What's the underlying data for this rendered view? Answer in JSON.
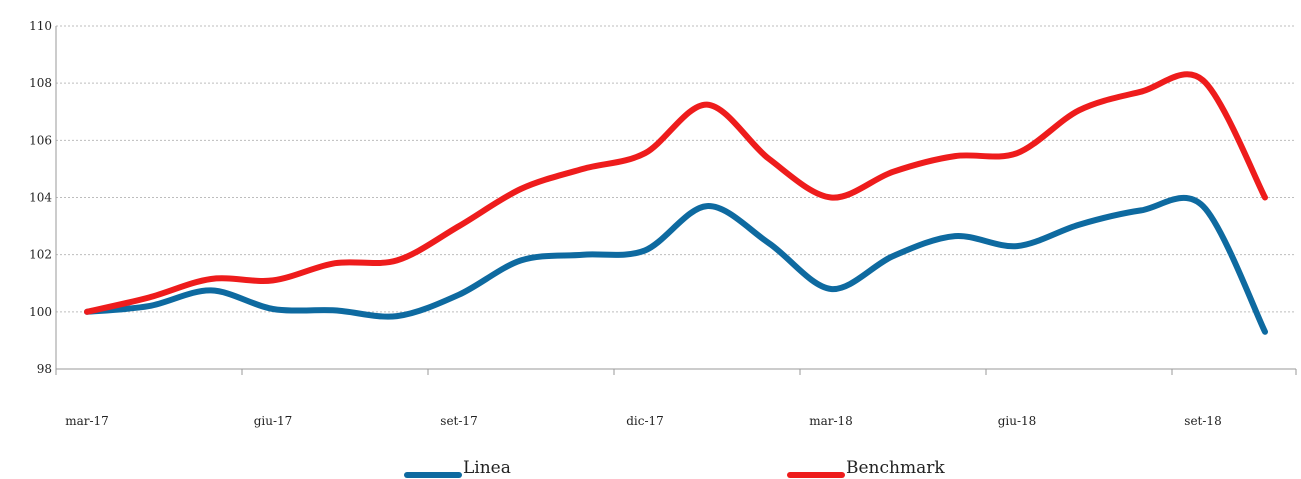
{
  "chart_data": {
    "type": "line",
    "title": "",
    "xlabel": "",
    "ylabel": "",
    "x_tick_labels": [
      "mar-17",
      "giu-17",
      "set-17",
      "dic-17",
      "mar-18",
      "giu-18",
      "set-18"
    ],
    "y_ticks": [
      98,
      100,
      102,
      104,
      106,
      108,
      110
    ],
    "ylim": [
      98,
      110
    ],
    "grid": "horizontal dashed",
    "legend": "bottom-center",
    "periods": [
      "mar-17",
      "apr-17",
      "mag-17",
      "giu-17",
      "lug-17",
      "ago-17",
      "set-17",
      "ott-17",
      "nov-17",
      "dic-17",
      "gen-18",
      "feb-18",
      "mar-18",
      "apr-18",
      "mag-18",
      "giu-18",
      "lug-18",
      "ago-18",
      "set-18",
      "ott-18"
    ],
    "series": [
      {
        "name": "Linea",
        "color": "#0e6aa0",
        "values": [
          100.0,
          100.2,
          100.75,
          100.1,
          100.05,
          99.85,
          100.6,
          101.8,
          102.0,
          102.15,
          103.7,
          102.4,
          100.8,
          101.95,
          102.65,
          102.3,
          103.05,
          103.55,
          103.7,
          99.3
        ]
      },
      {
        "name": "Benchmark",
        "color": "#ee1c1c",
        "values": [
          100.0,
          100.5,
          101.15,
          101.1,
          101.7,
          101.8,
          103.0,
          104.3,
          105.0,
          105.55,
          107.25,
          105.35,
          104.0,
          104.9,
          105.45,
          105.55,
          107.05,
          107.7,
          108.1,
          104.0
        ]
      }
    ]
  }
}
